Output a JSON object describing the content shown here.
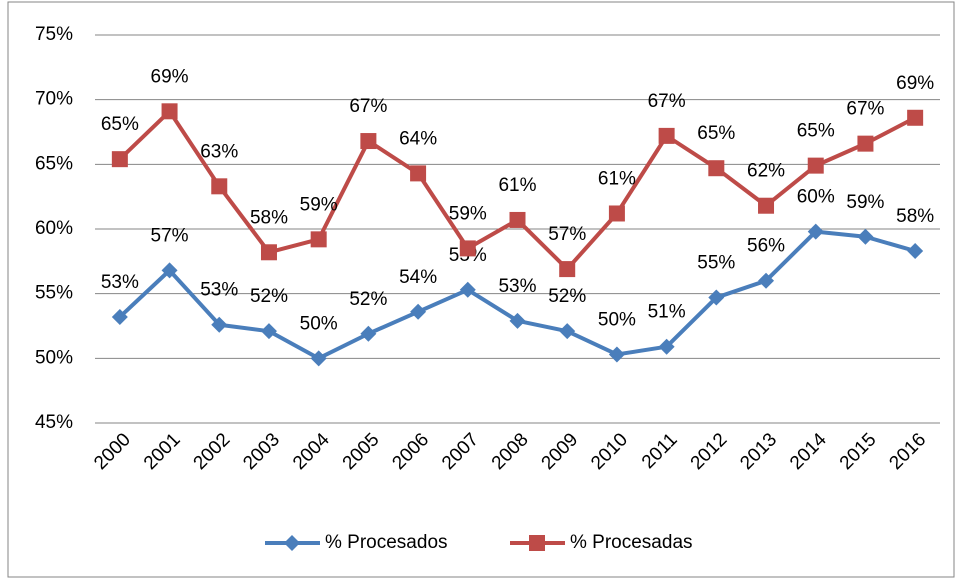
{
  "chart_data": {
    "type": "line",
    "categories": [
      "2000",
      "2001",
      "2002",
      "2003",
      "2004",
      "2005",
      "2006",
      "2007",
      "2008",
      "2009",
      "2010",
      "2011",
      "2012",
      "2013",
      "2014",
      "2015",
      "2016"
    ],
    "series": [
      {
        "name": "% Procesados",
        "color": "#4a7ebb",
        "marker": "diamond",
        "values": [
          53.2,
          56.8,
          52.6,
          52.1,
          50.0,
          51.9,
          53.6,
          55.3,
          52.9,
          52.1,
          50.3,
          50.9,
          54.7,
          56.0,
          59.8,
          59.4,
          58.3
        ],
        "value_labels": [
          "53%",
          "57%",
          "53%",
          "52%",
          "50%",
          "52%",
          "54%",
          "55%",
          "53%",
          "52%",
          "50%",
          "51%",
          "55%",
          "56%",
          "60%",
          "59%",
          "58%"
        ]
      },
      {
        "name": "% Procesadas",
        "color": "#be4b48",
        "marker": "square",
        "values": [
          65.4,
          69.1,
          63.3,
          58.2,
          59.2,
          66.8,
          64.3,
          58.5,
          60.7,
          56.9,
          61.2,
          67.2,
          64.7,
          61.8,
          64.9,
          66.6,
          68.6
        ],
        "value_labels": [
          "65%",
          "69%",
          "63%",
          "58%",
          "59%",
          "67%",
          "64%",
          "59%",
          "61%",
          "57%",
          "61%",
          "67%",
          "65%",
          "62%",
          "65%",
          "67%",
          "69%"
        ]
      }
    ],
    "ylim": [
      45,
      75
    ],
    "yticks": [
      {
        "value": 45,
        "label": "45%"
      },
      {
        "value": 50,
        "label": "50%"
      },
      {
        "value": 55,
        "label": "55%"
      },
      {
        "value": 60,
        "label": "60%"
      },
      {
        "value": 65,
        "label": "65%"
      },
      {
        "value": 70,
        "label": "70%"
      },
      {
        "value": 75,
        "label": "75%"
      }
    ],
    "grid": true,
    "legend": "bottom"
  }
}
